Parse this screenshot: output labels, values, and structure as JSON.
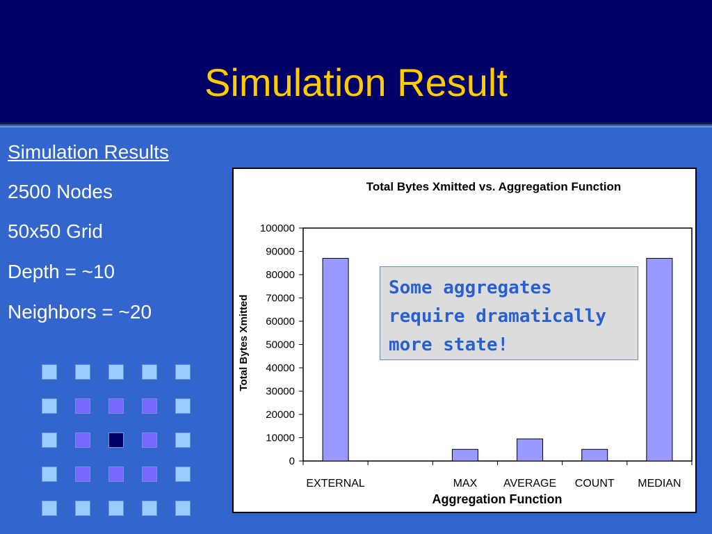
{
  "slide": {
    "title": "Simulation Result",
    "left_items": [
      "Simulation Results",
      "2500 Nodes",
      "50x50 Grid",
      "Depth = ~10",
      "Neighbors = ~20"
    ]
  },
  "grid_legend": {
    "colors": {
      "light": "#99ccff",
      "medium": "#7766ff",
      "dark": "#000066"
    },
    "cells": [
      [
        "light",
        "light",
        "light",
        "light",
        "light"
      ],
      [
        "light",
        "medium",
        "medium",
        "medium",
        "light"
      ],
      [
        "light",
        "medium",
        "dark",
        "medium",
        "light"
      ],
      [
        "light",
        "medium",
        "medium",
        "medium",
        "light"
      ],
      [
        "light",
        "light",
        "light",
        "light",
        "light"
      ]
    ]
  },
  "callout": {
    "text": "Some aggregates require dramatically more state!"
  },
  "colors": {
    "bar": "#9999ff",
    "title_bg": "#000066",
    "slide_bg": "#3366cc",
    "title_text": "#ffcc00",
    "callout_text": "#2a5fd0"
  },
  "chart_data": {
    "type": "bar",
    "title": "Total Bytes Xmitted vs. Aggregation Function",
    "xlabel": "Aggregation Function",
    "ylabel": "Total Bytes Xmitted",
    "categories": [
      "EXTERNAL",
      "",
      "MAX",
      "AVERAGE",
      "COUNT",
      "MEDIAN"
    ],
    "values": [
      87000,
      null,
      5000,
      9500,
      5000,
      87000
    ],
    "ylim": [
      0,
      100000
    ],
    "yticks": [
      "0",
      "10000",
      "20000",
      "30000",
      "40000",
      "50000",
      "60000",
      "70000",
      "80000",
      "90000",
      "100000"
    ],
    "grid": false,
    "legend": "none"
  }
}
